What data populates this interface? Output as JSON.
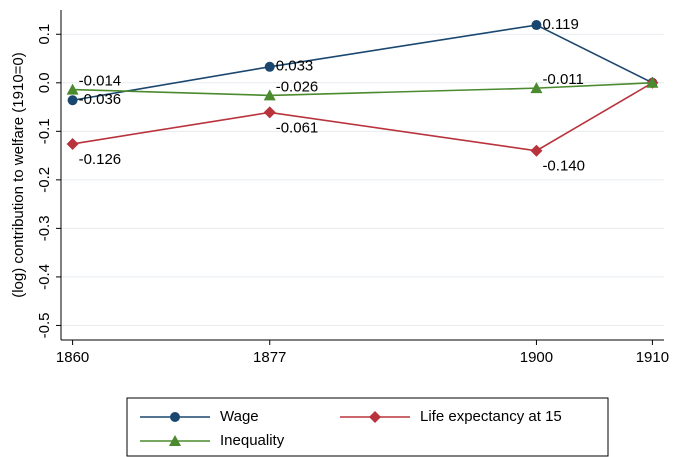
{
  "chart_data": {
    "type": "line",
    "y_label": "(log) contribution to welfare (1910=0)",
    "x": [
      1860,
      1877,
      1900,
      1910
    ],
    "xlim": [
      1859,
      1911
    ],
    "xticks": [
      1860,
      1877,
      1900,
      1910
    ],
    "ylim": [
      -0.53,
      0.15
    ],
    "yticks": [
      {
        "value": -0.5,
        "label": "-0.5"
      },
      {
        "value": -0.4,
        "label": "-0.4"
      },
      {
        "value": -0.3,
        "label": "-0.3"
      },
      {
        "value": -0.2,
        "label": "-0.2"
      },
      {
        "value": -0.1,
        "label": "-0.1"
      },
      {
        "value": 0,
        "label": "0.0"
      },
      {
        "value": 0.1,
        "label": "0.1"
      }
    ],
    "grid": true,
    "legend": "bottom",
    "series": [
      {
        "name": "Wage",
        "color": "#1a476f",
        "marker": "circle",
        "values": [
          -0.036,
          0.033,
          0.119,
          0
        ],
        "value_labels": [
          "-0.036",
          "0.033",
          "0.119",
          null
        ]
      },
      {
        "name": "Life expectancy at 15",
        "color": "#b8333c",
        "marker": "diamond",
        "values": [
          -0.126,
          -0.061,
          -0.14,
          0
        ],
        "value_labels": [
          "-0.126",
          "-0.061",
          "-0.140",
          null
        ]
      },
      {
        "name": "Inequality",
        "color": "#4b8a2e",
        "marker": "triangle",
        "values": [
          -0.014,
          -0.026,
          -0.011,
          0
        ],
        "value_labels": [
          "-0.014",
          "-0.026",
          "-0.011",
          null
        ]
      }
    ]
  }
}
